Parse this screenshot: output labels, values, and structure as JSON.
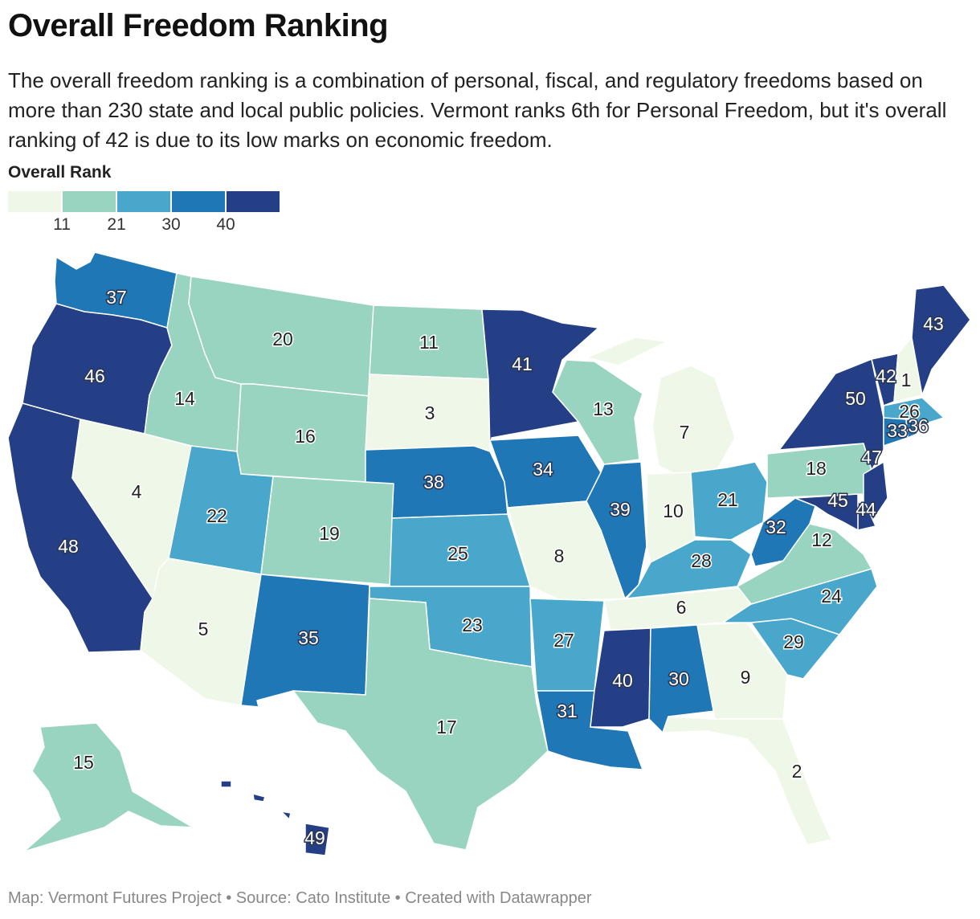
{
  "header": {
    "title": "Overall Freedom Ranking",
    "description": "The overall freedom ranking is a combination of personal, fiscal, and regulatory freedoms based on more than 230 state and local public policies. Vermont ranks 6th for Personal Freedom, but it's overall ranking of 42 is due to its low marks on economic freedom."
  },
  "legend": {
    "title": "Overall Rank",
    "ticks": [
      "11",
      "21",
      "30",
      "40"
    ],
    "colors": [
      "#eff8e8",
      "#98d4c0",
      "#4aa7cc",
      "#1f77b6",
      "#243f85"
    ]
  },
  "map_data": {
    "type": "choropleth",
    "region": "United States",
    "metric": "Overall Rank",
    "states": [
      {
        "name": "Washington",
        "rank": 37
      },
      {
        "name": "Oregon",
        "rank": 46
      },
      {
        "name": "California",
        "rank": 48
      },
      {
        "name": "Nevada",
        "rank": 4
      },
      {
        "name": "Idaho",
        "rank": 14
      },
      {
        "name": "Montana",
        "rank": 20
      },
      {
        "name": "Wyoming",
        "rank": 16
      },
      {
        "name": "Utah",
        "rank": 22
      },
      {
        "name": "Arizona",
        "rank": 5
      },
      {
        "name": "Colorado",
        "rank": 19
      },
      {
        "name": "New Mexico",
        "rank": 35
      },
      {
        "name": "North Dakota",
        "rank": 11
      },
      {
        "name": "South Dakota",
        "rank": 3
      },
      {
        "name": "Nebraska",
        "rank": 38
      },
      {
        "name": "Kansas",
        "rank": 25
      },
      {
        "name": "Oklahoma",
        "rank": 23
      },
      {
        "name": "Texas",
        "rank": 17
      },
      {
        "name": "Minnesota",
        "rank": 41
      },
      {
        "name": "Iowa",
        "rank": 34
      },
      {
        "name": "Missouri",
        "rank": 8
      },
      {
        "name": "Arkansas",
        "rank": 27
      },
      {
        "name": "Louisiana",
        "rank": 31
      },
      {
        "name": "Wisconsin",
        "rank": 13
      },
      {
        "name": "Illinois",
        "rank": 39
      },
      {
        "name": "Michigan",
        "rank": 7
      },
      {
        "name": "Indiana",
        "rank": 10
      },
      {
        "name": "Ohio",
        "rank": 21
      },
      {
        "name": "Kentucky",
        "rank": 28
      },
      {
        "name": "Tennessee",
        "rank": 6
      },
      {
        "name": "Mississippi",
        "rank": 40
      },
      {
        "name": "Alabama",
        "rank": 30
      },
      {
        "name": "Georgia",
        "rank": 9
      },
      {
        "name": "Florida",
        "rank": 2
      },
      {
        "name": "South Carolina",
        "rank": 29
      },
      {
        "name": "North Carolina",
        "rank": 24
      },
      {
        "name": "Virginia",
        "rank": 12
      },
      {
        "name": "West Virginia",
        "rank": 32
      },
      {
        "name": "Pennsylvania",
        "rank": 18
      },
      {
        "name": "New York",
        "rank": 50
      },
      {
        "name": "Vermont",
        "rank": 42
      },
      {
        "name": "New Hampshire",
        "rank": 1
      },
      {
        "name": "Maine",
        "rank": 43
      },
      {
        "name": "Massachusetts",
        "rank": 26
      },
      {
        "name": "Connecticut",
        "rank": 33
      },
      {
        "name": "Rhode Island",
        "rank": 36
      },
      {
        "name": "New Jersey",
        "rank": 47
      },
      {
        "name": "Maryland",
        "rank": 45
      },
      {
        "name": "Delaware",
        "rank": 44
      },
      {
        "name": "Alaska",
        "rank": 15
      },
      {
        "name": "Hawaii",
        "rank": 49
      }
    ]
  },
  "footer": {
    "credit": "Map: Vermont Futures Project • Source: Cato Institute • Created with Datawrapper"
  }
}
